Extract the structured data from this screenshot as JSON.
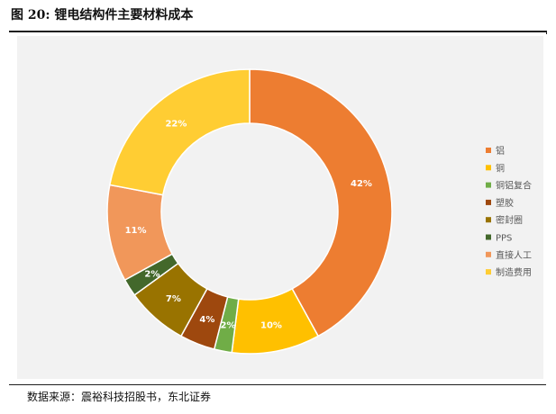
{
  "figure": {
    "title": "图  20:  锂电结构件主要材料成本",
    "source": "数据来源：震裕科技招股书，东北证券"
  },
  "chart_data": {
    "type": "pie",
    "donut": true,
    "categories": [
      "铝",
      "铜",
      "铜铝复合",
      "塑胶",
      "密封圈",
      "PPS",
      "直接人工",
      "制造费用"
    ],
    "values": [
      42,
      10,
      2,
      4,
      7,
      2,
      11,
      22
    ],
    "value_labels": [
      "42%",
      "10%",
      "2%",
      "4%",
      "7%",
      "2%",
      "11%",
      "22%"
    ],
    "colors": [
      "#ED7D31",
      "#FFC000",
      "#70AD47",
      "#9E480E",
      "#997300",
      "#43682B",
      "#F1975A",
      "#FFCD33"
    ],
    "legend_position": "right"
  }
}
